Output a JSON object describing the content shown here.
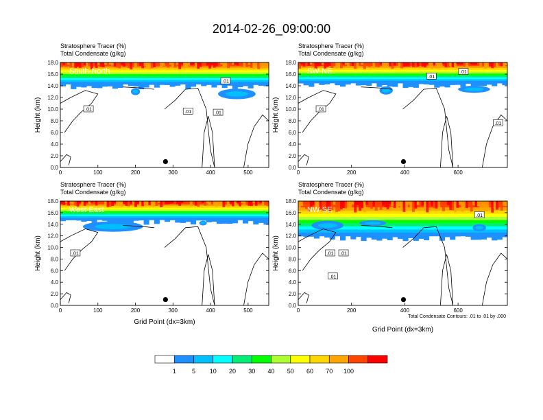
{
  "title": "2014-02-26_09:00:00",
  "footnote": "Total Condensate Contours: .01 to .01 by .000",
  "colorbar": {
    "colors": [
      "#ffffff",
      "#1e90ff",
      "#00bfff",
      "#00ffff",
      "#00ee76",
      "#00ff00",
      "#adff2f",
      "#ffff00",
      "#ffd700",
      "#ffa500",
      "#ff4500",
      "#ff0000"
    ],
    "labels": [
      "1",
      "5",
      "10",
      "20",
      "30",
      "40",
      "50",
      "60",
      "70",
      "100"
    ]
  },
  "chart_data": [
    {
      "type": "heatmap",
      "name": "South-North",
      "subtitle_1": "Stratosphere Tracer   (%)",
      "subtitle_2": "Total Condensate   (g/kg)",
      "ylabel": "Height (km)",
      "xlabel": "",
      "xticks": [
        0,
        100,
        200,
        300,
        400,
        500
      ],
      "xlim": [
        0,
        555
      ],
      "yticks": [
        "0.0",
        "2.0",
        "4.0",
        "6.0",
        "8.0",
        "10.0",
        "12.0",
        "14.0",
        "16.0",
        "18.0"
      ],
      "ylim": [
        0,
        18
      ],
      "tracer_base_km": 14.3,
      "marker_x": 280,
      "marker_y": 1.0,
      "contour_labels": [
        {
          "text": ".01",
          "x": 75,
          "y": 10.0
        },
        {
          "text": ".01",
          "x": 340,
          "y": 9.6
        },
        {
          "text": ".01",
          "x": 420,
          "y": 9.4
        },
        {
          "text": ".01",
          "x": 440,
          "y": 14.8
        }
      ],
      "blue_patches": [
        {
          "x": 200,
          "y": 13.0,
          "rx": 12,
          "ry": 0.6
        },
        {
          "x": 470,
          "y": 12.6,
          "rx": 50,
          "ry": 0.9
        }
      ]
    },
    {
      "type": "heatmap",
      "name": "SW-NE",
      "subtitle_1": "Stratosphere Tracer   (%)",
      "subtitle_2": "Total Condensate   (g/kg)",
      "ylabel": "Height (km)",
      "xlabel": "",
      "xticks": [
        0,
        200,
        400,
        600
      ],
      "xlim": [
        0,
        785
      ],
      "yticks": [
        "0.0",
        "2.0",
        "4.0",
        "6.0",
        "8.0",
        "10.0",
        "12.0",
        "14.0",
        "16.0",
        "18.0"
      ],
      "ylim": [
        0,
        18
      ],
      "tracer_base_km": 14.5,
      "marker_x": 395,
      "marker_y": 1.0,
      "contour_labels": [
        {
          "text": ".01",
          "x": 85,
          "y": 10.0
        },
        {
          "text": ".01",
          "x": 500,
          "y": 15.6
        },
        {
          "text": ".01",
          "x": 620,
          "y": 16.4
        },
        {
          "text": ".01",
          "x": 750,
          "y": 7.6
        }
      ],
      "blue_patches": [
        {
          "x": 330,
          "y": 13.2,
          "rx": 25,
          "ry": 0.7
        },
        {
          "x": 660,
          "y": 13.4,
          "rx": 60,
          "ry": 0.6
        }
      ]
    },
    {
      "type": "heatmap",
      "name": "West-East",
      "subtitle_1": "Stratosphere Tracer   (%)",
      "subtitle_2": "Total Condensate   (g/kg)",
      "ylabel": "Height (km)",
      "xlabel": "Grid Point (dx=3km)",
      "xticks": [
        0,
        100,
        200,
        300,
        400,
        500
      ],
      "xlim": [
        0,
        555
      ],
      "yticks": [
        "0.0",
        "2.0",
        "4.0",
        "6.0",
        "8.0",
        "10.0",
        "12.0",
        "14.0",
        "16.0",
        "18.0"
      ],
      "ylim": [
        0,
        18
      ],
      "tracer_base_km": 14.8,
      "marker_x": 280,
      "marker_y": 1.0,
      "contour_labels": [
        {
          "text": ".01",
          "x": 40,
          "y": 9.0
        }
      ],
      "blue_patches": [
        {
          "x": 140,
          "y": 13.6,
          "rx": 80,
          "ry": 0.9
        },
        {
          "x": 380,
          "y": 14.2,
          "rx": 10,
          "ry": 0.4
        }
      ]
    },
    {
      "type": "heatmap",
      "name": "NW-SE",
      "subtitle_1": "Stratosphere Tracer   (%)",
      "subtitle_2": "Total Condensate   (g/kg)",
      "ylabel": "Height (km)",
      "xlabel": "Grid Point (dx=3km)",
      "xticks": [
        0,
        200,
        400,
        600
      ],
      "xlim": [
        0,
        785
      ],
      "yticks": [
        "0.0",
        "2.0",
        "4.0",
        "6.0",
        "8.0",
        "10.0",
        "12.0",
        "14.0",
        "16.0",
        "18.0"
      ],
      "ylim": [
        0,
        18
      ],
      "tracer_base_km": 12.0,
      "marker_x": 395,
      "marker_y": 1.0,
      "contour_labels": [
        {
          "text": ".01",
          "x": 120,
          "y": 9.0
        },
        {
          "text": ".01",
          "x": 170,
          "y": 9.0
        },
        {
          "text": ".01",
          "x": 130,
          "y": 5.0
        },
        {
          "text": ".01",
          "x": 680,
          "y": 15.6
        }
      ],
      "blue_patches": [
        {
          "x": 110,
          "y": 13.8,
          "rx": 60,
          "ry": 0.8
        },
        {
          "x": 280,
          "y": 14.2,
          "rx": 50,
          "ry": 0.5
        },
        {
          "x": 680,
          "y": 13.4,
          "rx": 25,
          "ry": 0.6
        }
      ]
    }
  ]
}
